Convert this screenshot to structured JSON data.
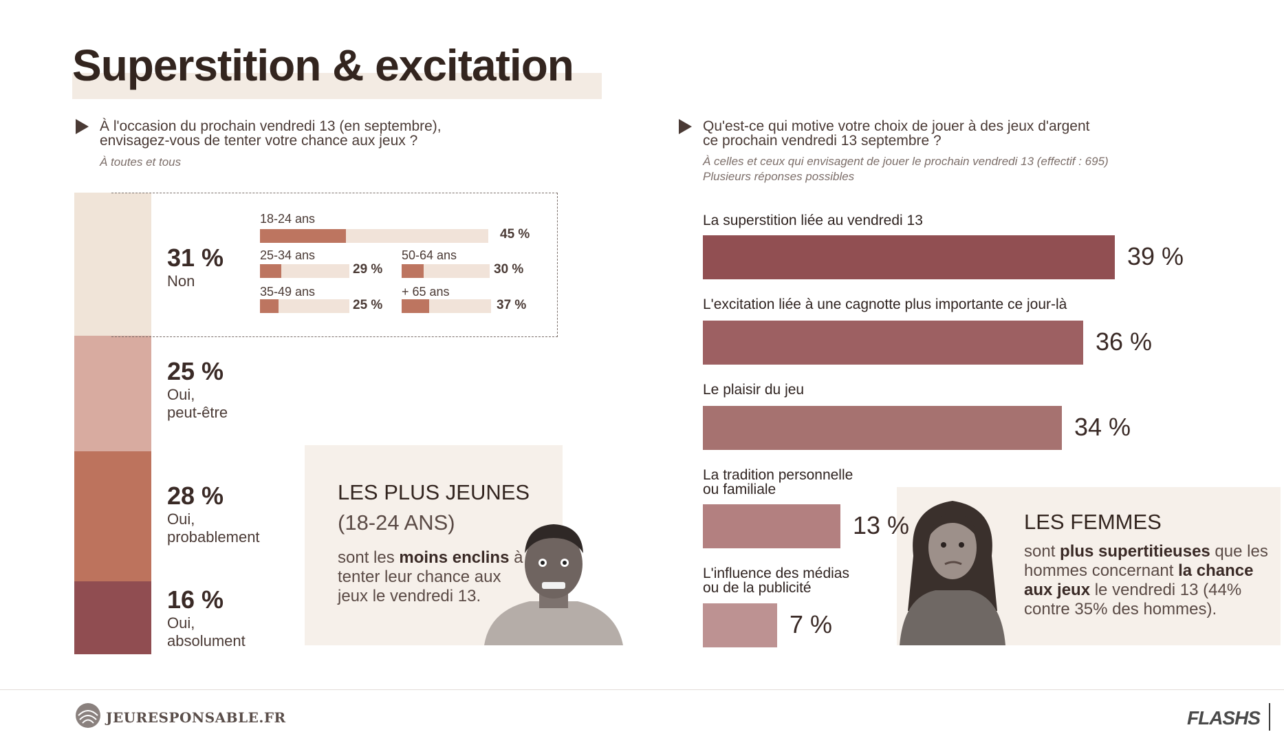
{
  "title": "Superstition & excitation",
  "left": {
    "question_line1": "À l'occasion du prochain vendredi 13 (en septembre),",
    "question_line2": "envisagez-vous de tenter votre chance aux jeux ?",
    "subtitle": "À toutes et tous",
    "segments": [
      {
        "value": 31,
        "pct": "31 %",
        "label1": "Non",
        "label2": "",
        "color": "#f0e4d8"
      },
      {
        "value": 25,
        "pct": "25 %",
        "label1": "Oui,",
        "label2": "peut-être",
        "color": "#d8aba0"
      },
      {
        "value": 28,
        "pct": "28 %",
        "label1": "Oui,",
        "label2": "probablement",
        "color": "#bd735d"
      },
      {
        "value": 16,
        "pct": "16 %",
        "label1": "Oui,",
        "label2": "absolument",
        "color": "#904d51"
      }
    ],
    "ages": [
      {
        "label": "18-24 ans",
        "value": 45,
        "pct": "45 %"
      },
      {
        "label": "25-34 ans",
        "value": 29,
        "pct": "29 %"
      },
      {
        "label": "50-64 ans",
        "value": 30,
        "pct": "30 %"
      },
      {
        "label": "35-49 ans",
        "value": 25,
        "pct": "25 %"
      },
      {
        "label": "+ 65 ans",
        "value": 37,
        "pct": "37 %"
      }
    ],
    "box": {
      "h1": "LES PLUS JEUNES",
      "h2": "(18-24 ANS)",
      "t1": "sont les ",
      "t1b": "moins enclins",
      "t1c": " à",
      "t2": "tenter leur chance aux",
      "t3": "jeux le vendredi 13."
    }
  },
  "right": {
    "question_line1": "Qu'est-ce qui motive votre choix de jouer à des jeux d'argent",
    "question_line2": "ce prochain vendredi 13 septembre ?",
    "subtitle1": "À celles et ceux qui envisagent de jouer le prochain vendredi 13 (effectif : 695)",
    "subtitle2": "Plusieurs réponses possibles",
    "chart_data": {
      "type": "bar",
      "categories": [
        "La superstition liée au vendredi 13",
        "L'excitation liée à une cagnotte plus importante ce jour-là",
        "Le plaisir du jeu",
        "La tradition personnelle ou familiale",
        "L'influence des médias ou de la publicité"
      ],
      "values": [
        39,
        36,
        34,
        13,
        7
      ],
      "value_labels": [
        "39 %",
        "36 %",
        "34 %",
        "13 %",
        "7 %"
      ],
      "label_lines": [
        [
          "La superstition liée au vendredi 13"
        ],
        [
          "L'excitation liée à une cagnotte plus importante ce jour-là"
        ],
        [
          "Le plaisir du jeu"
        ],
        [
          "La tradition personnelle",
          "ou familiale"
        ],
        [
          "L'influence des médias",
          "ou de la publicité"
        ]
      ],
      "colors": [
        "#914f52",
        "#9d6062",
        "#a67270",
        "#b38080",
        "#bd9292"
      ]
    },
    "box": {
      "h1": "LES FEMMES",
      "t1a": "sont ",
      "t1b": "plus supertitieuses",
      "t1c": " que les",
      "t2a": "hommes concernant ",
      "t2b": "la chance",
      "t3a": "aux jeux",
      "t3b": " le vendredi 13 (44%",
      "t4": "contre 35% des hommes)."
    }
  },
  "footer": {
    "site": "JEURESPONSABLE.FR",
    "brand": "FLASHS"
  }
}
